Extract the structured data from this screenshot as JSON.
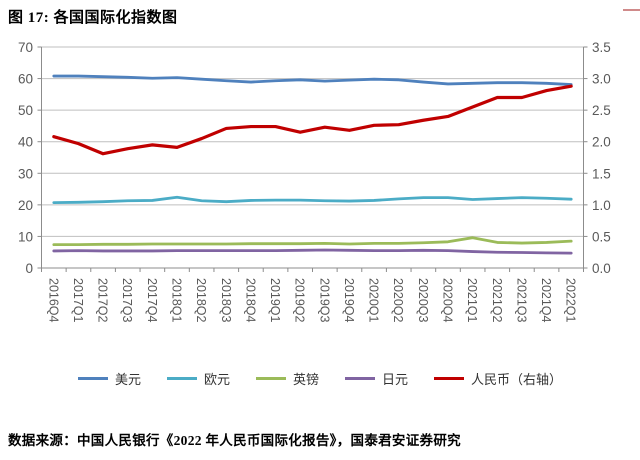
{
  "header": {
    "title": "图 17:  各国国际化指数图"
  },
  "footer": {
    "source": "数据来源：中国人民银行《2022 年人民币国际化报告》，国泰君安证券研究"
  },
  "chart_data": {
    "type": "line",
    "title": "各国国际化指数图",
    "grid": true,
    "legend_position": "bottom",
    "categories": [
      "2016Q4",
      "2017Q1",
      "2017Q2",
      "2017Q3",
      "2017Q4",
      "2018Q1",
      "2018Q2",
      "2018Q3",
      "2018Q4",
      "2019Q1",
      "2019Q2",
      "2019Q3",
      "2019Q4",
      "2020Q1",
      "2020Q2",
      "2020Q3",
      "2020Q4",
      "2021Q1",
      "2021Q2",
      "2021Q3",
      "2021Q4",
      "2022Q1"
    ],
    "left_axis": {
      "min": 0,
      "max": 70,
      "ticks": [
        0,
        10,
        20,
        30,
        40,
        50,
        60,
        70
      ]
    },
    "right_axis": {
      "min": 0,
      "max": 3.5,
      "ticks": [
        "0.0",
        "0.5",
        "1.0",
        "1.5",
        "2.0",
        "2.5",
        "3.0",
        "3.5"
      ]
    },
    "series": [
      {
        "id": "usd",
        "name": "美元",
        "color": "#4F81BD",
        "axis": "left",
        "values": [
          60.8,
          60.8,
          60.6,
          60.4,
          60.1,
          60.3,
          59.8,
          59.3,
          58.9,
          59.3,
          59.6,
          59.2,
          59.5,
          59.8,
          59.6,
          58.9,
          58.3,
          58.5,
          58.7,
          58.7,
          58.5,
          58.1
        ]
      },
      {
        "id": "eur",
        "name": "欧元",
        "color": "#4BACC6",
        "axis": "left",
        "values": [
          20.7,
          20.8,
          21.0,
          21.3,
          21.4,
          22.4,
          21.3,
          21.0,
          21.4,
          21.5,
          21.5,
          21.3,
          21.2,
          21.4,
          21.9,
          22.3,
          22.3,
          21.7,
          22.0,
          22.3,
          22.1,
          21.8
        ]
      },
      {
        "id": "gbp",
        "name": "英镑",
        "color": "#9BBB59",
        "axis": "left",
        "values": [
          7.4,
          7.4,
          7.5,
          7.5,
          7.6,
          7.6,
          7.6,
          7.6,
          7.7,
          7.7,
          7.7,
          7.8,
          7.6,
          7.8,
          7.8,
          8.0,
          8.3,
          9.6,
          8.1,
          7.9,
          8.1,
          8.5
        ]
      },
      {
        "id": "jpy",
        "name": "日元",
        "color": "#8064A2",
        "axis": "left",
        "values": [
          5.4,
          5.5,
          5.4,
          5.4,
          5.4,
          5.5,
          5.5,
          5.5,
          5.5,
          5.5,
          5.6,
          5.7,
          5.6,
          5.5,
          5.5,
          5.6,
          5.5,
          5.2,
          5.0,
          4.9,
          4.8,
          4.7
        ]
      },
      {
        "id": "rmb",
        "name": "人民币（右轴）",
        "color": "#C00000",
        "axis": "right",
        "values": [
          2.08,
          1.97,
          1.81,
          1.89,
          1.95,
          1.91,
          2.05,
          2.21,
          2.24,
          2.24,
          2.15,
          2.23,
          2.18,
          2.26,
          2.27,
          2.34,
          2.4,
          2.55,
          2.7,
          2.7,
          2.81,
          2.88
        ]
      }
    ]
  }
}
